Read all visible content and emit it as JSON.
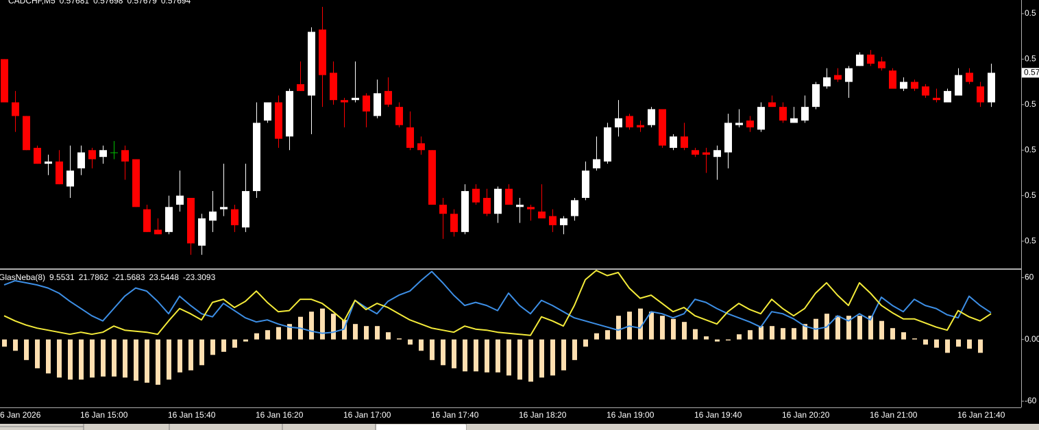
{
  "chart_data": [
    {
      "type": "candlestick",
      "title": "CADCHF,M5",
      "categories": [
        "6 Jan 2026",
        null,
        null,
        null,
        null,
        null,
        null,
        "16 Jan 15:00",
        null,
        null,
        null,
        null,
        null,
        null,
        null,
        "16 Jan 15:40",
        null,
        null,
        null,
        null,
        null,
        null,
        null,
        "16 Jan 16:20",
        null,
        null,
        null,
        null,
        null,
        null,
        null,
        "16 Jan 17:00",
        null,
        null,
        null,
        null,
        null,
        null,
        null,
        "16 Jan 17:40",
        null,
        null,
        null,
        null,
        null,
        null,
        null,
        "16 Jan 18:20",
        null,
        null,
        null,
        null,
        null,
        null,
        null,
        "16 Jan 19:00",
        null,
        null,
        null,
        null,
        null,
        null,
        null,
        "16 Jan 19:40",
        null,
        null,
        null,
        null,
        null,
        null,
        null,
        "16 Jan 20:20",
        null,
        null,
        null,
        null,
        null,
        null,
        null,
        "16 Jan 21:00",
        null,
        null,
        null,
        null,
        null,
        null,
        null,
        "16 Jan 21:40",
        null,
        null,
        null
      ],
      "open": [
        0.577,
        0.57681,
        0.57675,
        0.57661,
        0.57654,
        0.57655,
        0.57644,
        0.57652,
        0.5766,
        0.57657,
        0.57659,
        0.5766,
        0.57656,
        0.57634,
        0.57625,
        0.57624,
        0.57636,
        0.57639,
        0.57618,
        0.57629,
        0.57634,
        0.57634,
        0.57626,
        0.57642,
        0.57673,
        0.57681,
        0.57666,
        0.57689,
        0.57684,
        0.57713,
        0.57694,
        0.57682,
        0.57682,
        0.57684,
        0.57675,
        0.57686,
        0.57679,
        0.5767,
        0.57663,
        0.5766,
        0.57636,
        0.57632,
        0.57624,
        0.57643,
        0.57639,
        0.57632,
        0.57643,
        0.57635,
        0.57635,
        0.57633,
        0.57631,
        0.57627,
        0.57631,
        0.57639,
        0.57652,
        0.57655,
        0.5767,
        0.57675,
        0.57671,
        0.57671,
        0.57678,
        0.57661,
        0.57666,
        0.5766,
        0.57659,
        0.57657,
        0.57659,
        0.57671,
        0.57673,
        0.57669,
        0.57681,
        0.57679,
        0.57672,
        0.57673,
        0.57679,
        0.57688,
        0.57693,
        0.5769,
        0.57697,
        0.57702,
        0.57699,
        0.57695,
        0.57687,
        0.5769,
        0.57688,
        0.57683,
        0.57681,
        0.57684,
        0.57694,
        0.57688,
        0.57681
      ],
      "high": [
        0.577,
        0.57686,
        0.57675,
        0.57662,
        0.57658,
        0.5766,
        0.57662,
        0.57662,
        0.57661,
        0.57662,
        0.57664,
        0.57662,
        0.57656,
        0.57636,
        0.5763,
        0.5764,
        0.57651,
        0.57639,
        0.57632,
        0.57642,
        0.57654,
        0.57636,
        0.57654,
        0.57681,
        0.57681,
        0.57684,
        0.57687,
        0.57699,
        0.57714,
        0.57723,
        0.57699,
        0.57683,
        0.57699,
        0.57685,
        0.57691,
        0.57692,
        0.57681,
        0.57677,
        0.57666,
        0.5766,
        0.57639,
        0.57634,
        0.57645,
        0.57645,
        0.57643,
        0.57644,
        0.57645,
        0.57639,
        0.57636,
        0.57645,
        0.57634,
        0.57631,
        0.57639,
        0.57655,
        0.57666,
        0.57672,
        0.57682,
        0.57676,
        0.57673,
        0.57679,
        0.57678,
        0.57667,
        0.57672,
        0.57661,
        0.57661,
        0.57662,
        0.57676,
        0.57678,
        0.57675,
        0.57681,
        0.57684,
        0.57681,
        0.57679,
        0.57684,
        0.5769,
        0.57696,
        0.57696,
        0.57697,
        0.57703,
        0.57704,
        0.57701,
        0.57696,
        0.57692,
        0.57691,
        0.57689,
        0.57687,
        0.57687,
        0.57696,
        0.57696,
        0.5769,
        0.57698
      ],
      "low": [
        0.57681,
        0.57668,
        0.5766,
        0.57654,
        0.57649,
        0.57645,
        0.57639,
        0.57649,
        0.57652,
        0.57654,
        0.57656,
        0.57647,
        0.57635,
        0.57624,
        0.57623,
        0.57623,
        0.57633,
        0.57614,
        0.57614,
        0.57624,
        0.57631,
        0.57624,
        0.57624,
        0.57639,
        0.57672,
        0.57661,
        0.5766,
        0.57686,
        0.57667,
        0.57679,
        0.5768,
        0.5767,
        0.57681,
        0.5767,
        0.57674,
        0.57679,
        0.5767,
        0.5766,
        0.57658,
        0.57636,
        0.57621,
        0.57622,
        0.57623,
        0.57636,
        0.57631,
        0.57628,
        0.57636,
        0.57628,
        0.57629,
        0.5763,
        0.57624,
        0.57623,
        0.57629,
        0.57638,
        0.57651,
        0.57654,
        0.57666,
        0.57669,
        0.57668,
        0.5767,
        0.57661,
        0.5766,
        0.5766,
        0.57657,
        0.5765,
        0.57647,
        0.57652,
        0.5767,
        0.57668,
        0.57668,
        0.57679,
        0.57672,
        0.57672,
        0.57672,
        0.57678,
        0.57687,
        0.5769,
        0.57683,
        0.57697,
        0.57697,
        0.57695,
        0.57687,
        0.57686,
        0.57686,
        0.57683,
        0.57681,
        0.57681,
        0.57684,
        0.57689,
        0.57679,
        0.57679
      ],
      "close": [
        0.57681,
        0.57675,
        0.5766,
        0.57654,
        0.57655,
        0.57645,
        0.57651,
        0.57659,
        0.57656,
        0.5766,
        0.57659,
        0.57655,
        0.57635,
        0.57624,
        0.57623,
        0.57635,
        0.5764,
        0.57619,
        0.5763,
        0.57633,
        0.57635,
        0.57627,
        0.57642,
        0.57672,
        0.57681,
        0.57665,
        0.57686,
        0.57686,
        0.57712,
        0.57693,
        0.57682,
        0.57681,
        0.57683,
        0.57677,
        0.57685,
        0.5768,
        0.57671,
        0.57661,
        0.5766,
        0.57636,
        0.57632,
        0.57624,
        0.57642,
        0.57637,
        0.57632,
        0.57643,
        0.57636,
        0.57636,
        0.57634,
        0.5763,
        0.57627,
        0.5763,
        0.57638,
        0.57651,
        0.57656,
        0.5767,
        0.57674,
        0.5767,
        0.5767,
        0.57678,
        0.57662,
        0.57666,
        0.57661,
        0.57658,
        0.57658,
        0.5766,
        0.57672,
        0.57672,
        0.5767,
        0.57679,
        0.57679,
        0.57673,
        0.57674,
        0.57679,
        0.57689,
        0.57692,
        0.57691,
        0.57696,
        0.57702,
        0.57698,
        0.57696,
        0.57687,
        0.5769,
        0.57687,
        0.57684,
        0.57682,
        0.57686,
        0.57693,
        0.5769,
        0.57681,
        0.57694
      ],
      "colors": {
        "up": "#ffffff",
        "down": "#ff0000",
        "doji": "#00c000"
      },
      "ylim": [
        0.57608,
        0.57726
      ],
      "yticks": [
        {
          "value": 0.5772,
          "label": "0.5"
        },
        {
          "value": 0.577,
          "label": "0.5"
        },
        {
          "value": 0.5768,
          "label": "0.5"
        },
        {
          "value": 0.5766,
          "label": "0.5"
        },
        {
          "value": 0.5764,
          "label": "0.5"
        },
        {
          "value": 0.5762,
          "label": "0.5"
        }
      ]
    },
    {
      "type": "combo",
      "title": "GlasNeba(8)",
      "header_values": [
        9.5531,
        21.7862,
        -21.5683,
        23.5448,
        -23.3093
      ],
      "histogram": {
        "color": "#ffdfb0",
        "values": [
          -7,
          -11,
          -20,
          -28,
          -33,
          -37,
          -39,
          -39,
          -37,
          -36,
          -36,
          -37,
          -40,
          -42,
          -44,
          -39,
          -32,
          -30,
          -25,
          -15,
          -12,
          -8,
          -2,
          6,
          9,
          12,
          15,
          22,
          27,
          30,
          25,
          19,
          15,
          13,
          13,
          7,
          1,
          -5,
          -11,
          -20,
          -25,
          -28,
          -31,
          -31,
          -32,
          -32,
          -35,
          -39,
          -41,
          -37,
          -35,
          -30,
          -20,
          -7,
          6,
          9,
          23,
          27,
          30,
          27,
          23,
          20,
          17,
          10,
          3,
          -2,
          -1,
          5,
          9,
          13,
          13,
          11,
          11,
          15,
          20,
          25,
          23,
          23,
          23,
          23,
          18,
          11,
          7,
          1,
          -5,
          -8,
          -13,
          -7,
          -9,
          -13,
          null
        ]
      },
      "series": [
        {
          "color": "#3d8fe6",
          "values": [
            53,
            57,
            55,
            53,
            50,
            45,
            37,
            30,
            23,
            18,
            30,
            42,
            50,
            47,
            37,
            25,
            42,
            33,
            25,
            22,
            35,
            28,
            21,
            17,
            19,
            15,
            12,
            11,
            8,
            6,
            7,
            10,
            38,
            31,
            25,
            37,
            43,
            47,
            57,
            66,
            55,
            43,
            33,
            36,
            33,
            28,
            45,
            33,
            25,
            38,
            33,
            27,
            21,
            18,
            15,
            12,
            9,
            13,
            11,
            27,
            25,
            21,
            25,
            39,
            36,
            30,
            25,
            21,
            17,
            12,
            27,
            25,
            20,
            13,
            10,
            12,
            23,
            18,
            25,
            19,
            41,
            33,
            27,
            39,
            33,
            30,
            24,
            21,
            42,
            33,
            26
          ]
        },
        {
          "color": "#f5ec3a",
          "values": [
            23,
            18,
            14,
            11,
            9,
            7,
            5,
            7,
            5,
            7,
            13,
            9,
            8,
            7,
            5,
            18,
            30,
            25,
            19,
            36,
            39,
            31,
            37,
            47,
            36,
            27,
            28,
            39,
            39,
            35,
            27,
            18,
            38,
            29,
            35,
            31,
            25,
            19,
            15,
            11,
            9,
            7,
            13,
            10,
            9,
            7,
            6,
            5,
            4,
            22,
            18,
            13,
            33,
            58,
            67,
            62,
            65,
            50,
            40,
            43,
            35,
            27,
            31,
            23,
            19,
            15,
            27,
            35,
            29,
            25,
            39,
            30,
            23,
            30,
            45,
            55,
            43,
            33,
            55,
            45,
            33,
            26,
            20,
            20,
            16,
            12,
            9,
            28,
            22,
            18,
            25
          ]
        }
      ],
      "ylim": [
        -66,
        67
      ],
      "yticks": [
        60,
        {
          "value": 0,
          "label": "0.00"
        },
        -60
      ]
    }
  ]
}
